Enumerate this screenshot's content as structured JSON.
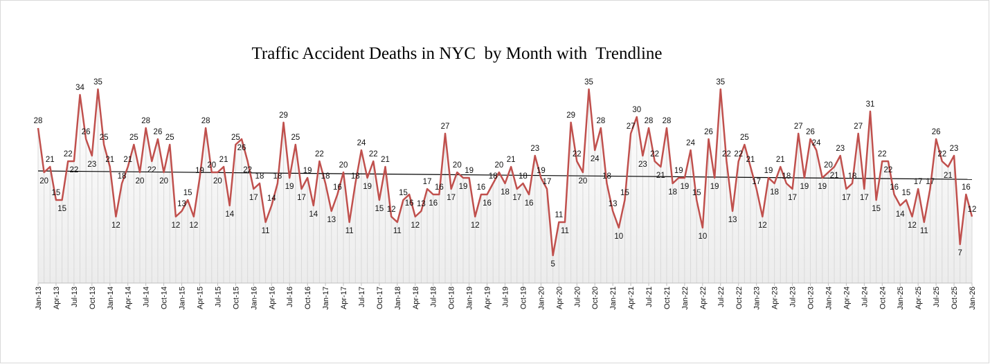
{
  "chart_data": {
    "type": "line",
    "title": "Traffic Accident Deaths in NYC  by Month with  Trendline",
    "xlabel": "",
    "ylabel": "",
    "ylim": [
      0,
      35
    ],
    "grid": false,
    "legend": "none",
    "trendline": "linear",
    "tick_every_months": 3,
    "colors": {
      "series": "#c0504d",
      "trendline": "#000000",
      "droplines": "#d9d9d9"
    },
    "categories": [
      "Jan-13",
      "Feb-13",
      "Mar-13",
      "Apr-13",
      "May-13",
      "Jun-13",
      "Jul-13",
      "Aug-13",
      "Sep-13",
      "Oct-13",
      "Nov-13",
      "Dec-13",
      "Jan-14",
      "Feb-14",
      "Mar-14",
      "Apr-14",
      "May-14",
      "Jun-14",
      "Jul-14",
      "Aug-14",
      "Sep-14",
      "Oct-14",
      "Nov-14",
      "Dec-14",
      "Jan-15",
      "Feb-15",
      "Mar-15",
      "Apr-15",
      "May-15",
      "Jun-15",
      "Jul-15",
      "Aug-15",
      "Sep-15",
      "Oct-15",
      "Nov-15",
      "Dec-15",
      "Jan-16",
      "Feb-16",
      "Mar-16",
      "Apr-16",
      "May-16",
      "Jun-16",
      "Jul-16",
      "Aug-16",
      "Sep-16",
      "Oct-16",
      "Nov-16",
      "Dec-16",
      "Jan-17",
      "Feb-17",
      "Mar-17",
      "Apr-17",
      "May-17",
      "Jun-17",
      "Jul-17",
      "Aug-17",
      "Sep-17",
      "Oct-17",
      "Nov-17",
      "Dec-17",
      "Jan-18",
      "Feb-18",
      "Mar-18",
      "Apr-18",
      "May-18",
      "Jun-18",
      "Jul-18",
      "Aug-18",
      "Sep-18",
      "Oct-18",
      "Nov-18",
      "Dec-18",
      "Jan-19",
      "Feb-19",
      "Mar-19",
      "Apr-19",
      "May-19",
      "Jun-19",
      "Jul-19",
      "Aug-19",
      "Sep-19",
      "Oct-19",
      "Nov-19",
      "Dec-19",
      "Jan-20",
      "Feb-20",
      "Mar-20",
      "Apr-20",
      "May-20",
      "Jun-20",
      "Jul-20",
      "Aug-20",
      "Sep-20",
      "Oct-20",
      "Nov-20",
      "Dec-20",
      "Jan-21",
      "Feb-21",
      "Mar-21",
      "Apr-21",
      "May-21",
      "Jun-21",
      "Jul-21",
      "Aug-21",
      "Sep-21",
      "Oct-21",
      "Nov-21",
      "Dec-21",
      "Jan-22",
      "Feb-22",
      "Mar-22",
      "Apr-22",
      "May-22",
      "Jun-22",
      "Jul-22",
      "Aug-22",
      "Sep-22",
      "Oct-22",
      "Nov-22",
      "Dec-22",
      "Jan-23",
      "Feb-23",
      "Mar-23",
      "Apr-23",
      "May-23",
      "Jun-23",
      "Jul-23",
      "Aug-23",
      "Sep-23",
      "Oct-23",
      "Nov-23",
      "Dec-23",
      "Jan-24",
      "Feb-24",
      "Mar-24",
      "Apr-24",
      "May-24",
      "Jun-24",
      "Jul-24",
      "Aug-24",
      "Sep-24",
      "Oct-24",
      "Nov-24",
      "Dec-24",
      "Jan-25",
      "Feb-25",
      "Mar-25",
      "Apr-25",
      "May-25",
      "Jun-25",
      "Jul-25",
      "Aug-25",
      "Sep-25",
      "Oct-25",
      "Nov-25",
      "Dec-25",
      "Jan-26"
    ],
    "values": [
      28,
      20,
      21,
      15,
      15,
      22,
      22,
      34,
      26,
      23,
      35,
      25,
      21,
      12,
      18,
      21,
      25,
      20,
      28,
      22,
      26,
      20,
      25,
      12,
      13,
      15,
      12,
      19,
      28,
      20,
      20,
      21,
      14,
      25,
      26,
      22,
      17,
      18,
      11,
      14,
      18,
      29,
      19,
      25,
      17,
      19,
      14,
      22,
      18,
      13,
      16,
      20,
      11,
      18,
      24,
      19,
      22,
      15,
      21,
      12,
      11,
      15,
      16,
      12,
      13,
      17,
      16,
      16,
      27,
      17,
      20,
      19,
      19,
      12,
      16,
      16,
      18,
      20,
      18,
      21,
      17,
      18,
      16,
      23,
      19,
      17,
      5,
      11,
      11,
      29,
      22,
      20,
      35,
      24,
      28,
      18,
      13,
      10,
      15,
      27,
      30,
      23,
      28,
      22,
      21,
      28,
      18,
      19,
      19,
      24,
      15,
      10,
      26,
      19,
      35,
      22,
      13,
      22,
      25,
      21,
      17,
      12,
      19,
      18,
      21,
      18,
      17,
      27,
      19,
      26,
      24,
      19,
      20,
      21,
      23,
      17,
      18,
      27,
      17,
      31,
      15,
      22,
      22,
      16,
      14,
      15,
      12,
      17,
      11,
      17,
      26,
      22,
      21,
      23,
      7,
      16,
      12
    ]
  }
}
